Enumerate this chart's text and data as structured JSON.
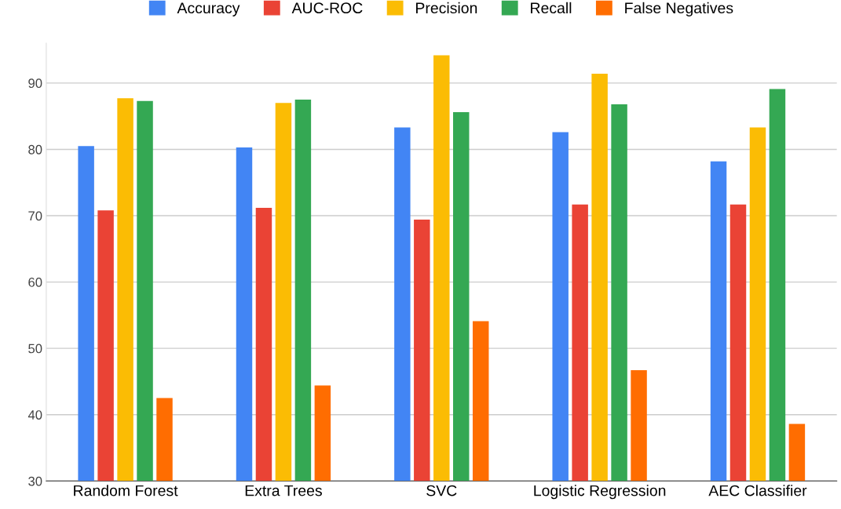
{
  "chart_data": {
    "type": "bar",
    "categories": [
      "Random Forest",
      "Extra Trees",
      "SVC",
      "Logistic Regression",
      "AEC Classifier"
    ],
    "series": [
      {
        "name": "Accuracy",
        "color": "#4285f4",
        "values": [
          80.5,
          80.3,
          83.3,
          82.6,
          78.2
        ]
      },
      {
        "name": "AUC-ROC",
        "color": "#ea4335",
        "values": [
          70.8,
          71.2,
          69.4,
          71.7,
          71.7
        ]
      },
      {
        "name": "Precision",
        "color": "#fbbc04",
        "values": [
          87.7,
          87.0,
          94.2,
          91.4,
          83.3
        ]
      },
      {
        "name": "Recall",
        "color": "#34a853",
        "values": [
          87.3,
          87.5,
          85.6,
          86.8,
          89.1
        ]
      },
      {
        "name": "False Negatives",
        "color": "#ff6d01",
        "values": [
          42.5,
          44.4,
          54.1,
          46.7,
          38.6
        ]
      }
    ],
    "ylim": [
      30,
      96
    ],
    "yticks": [
      30,
      40,
      50,
      60,
      70,
      80,
      90
    ],
    "grid": "y",
    "legend": "top"
  }
}
